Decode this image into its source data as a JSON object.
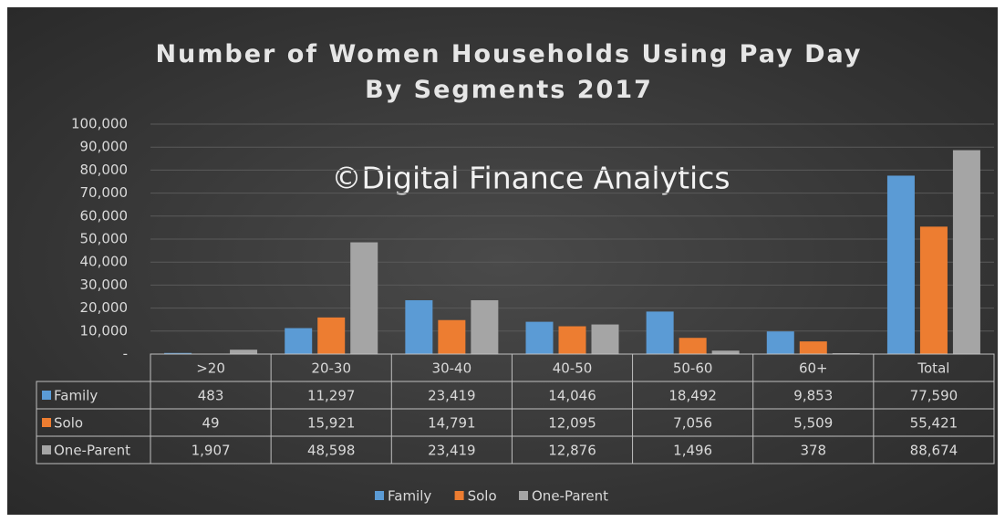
{
  "chart_data": {
    "type": "bar",
    "title": "Number of Women Households Using Pay Day By Segments 2017",
    "annotation": "©Digital Finance Analytics",
    "categories": [
      ">20",
      "20-30",
      "30-40",
      "40-50",
      "50-60",
      "60+",
      "Total"
    ],
    "series": [
      {
        "name": "Family",
        "color": "#5b9bd5",
        "values": [
          483,
          11297,
          23419,
          14046,
          18492,
          9853,
          77590
        ],
        "value_labels": [
          "483",
          "11,297",
          "23,419",
          "14,046",
          "18,492",
          "9,853",
          "77,590"
        ]
      },
      {
        "name": "Solo",
        "color": "#ed7d31",
        "values": [
          49,
          15921,
          14791,
          12095,
          7056,
          5509,
          55421
        ],
        "value_labels": [
          "49",
          "15,921",
          "14,791",
          "12,095",
          "7,056",
          "5,509",
          "55,421"
        ]
      },
      {
        "name": "One-Parent",
        "color": "#a5a5a5",
        "values": [
          1907,
          48598,
          23419,
          12876,
          1496,
          378,
          88674
        ],
        "value_labels": [
          "1,907",
          "48,598",
          "23,419",
          "12,876",
          "1,496",
          "378",
          "88,674"
        ]
      }
    ],
    "ylim": [
      0,
      100000
    ],
    "yticks": [
      {
        "value": 0,
        "label": "-"
      },
      {
        "value": 10000,
        "label": "10,000"
      },
      {
        "value": 20000,
        "label": "20,000"
      },
      {
        "value": 30000,
        "label": "30,000"
      },
      {
        "value": 40000,
        "label": "40,000"
      },
      {
        "value": 50000,
        "label": "50,000"
      },
      {
        "value": 60000,
        "label": "60,000"
      },
      {
        "value": 70000,
        "label": "70,000"
      },
      {
        "value": 80000,
        "label": "80,000"
      },
      {
        "value": 90000,
        "label": "90,000"
      },
      {
        "value": 100000,
        "label": "100,000"
      }
    ],
    "grid": true,
    "legend": "bottom"
  }
}
